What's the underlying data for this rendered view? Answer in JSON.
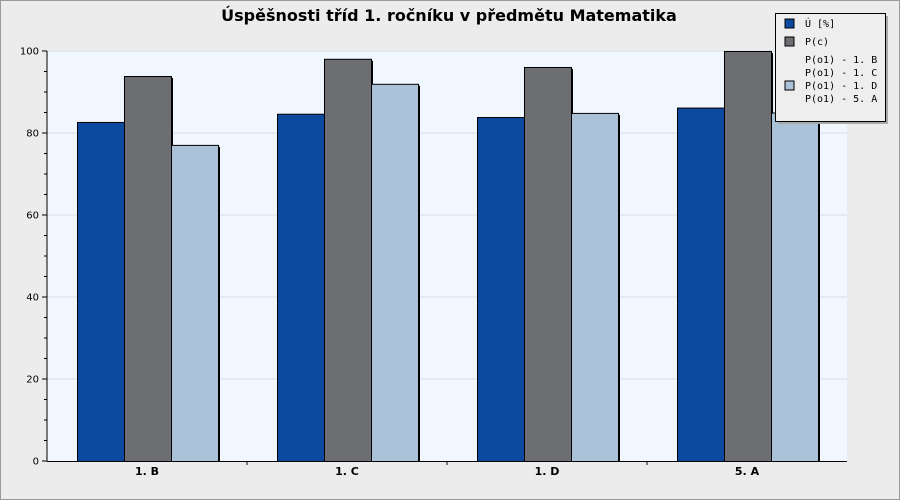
{
  "chart_data": {
    "type": "bar",
    "title": "Úspěšnosti tříd 1. ročníku v předmětu Matematika",
    "xlabel": "",
    "ylabel": "",
    "categories": [
      "1. B",
      "1. C",
      "1. D",
      "5. A"
    ],
    "ylim": [
      0,
      100
    ],
    "yticks": [
      0,
      20,
      40,
      60,
      80,
      100
    ],
    "grid": true,
    "legend_position": "top-right",
    "series": [
      {
        "name": "Ú [%]",
        "color": "#0c4aa0",
        "values": [
          82.7,
          84.7,
          83.9,
          86.2
        ]
      },
      {
        "name": "P(c)",
        "color": "#6d6e71",
        "values": [
          93.9,
          98.1,
          96.1,
          100
        ]
      },
      {
        "name": "P(o1) - 1. B",
        "color": "#a9c2d7",
        "values": [
          77.1,
          92.0,
          84.9,
          85.0
        ]
      }
    ],
    "legend_extra": [
      "P(o1) - 1. C",
      "P(o1) - 1. D",
      "P(o1) - 5. A"
    ]
  }
}
